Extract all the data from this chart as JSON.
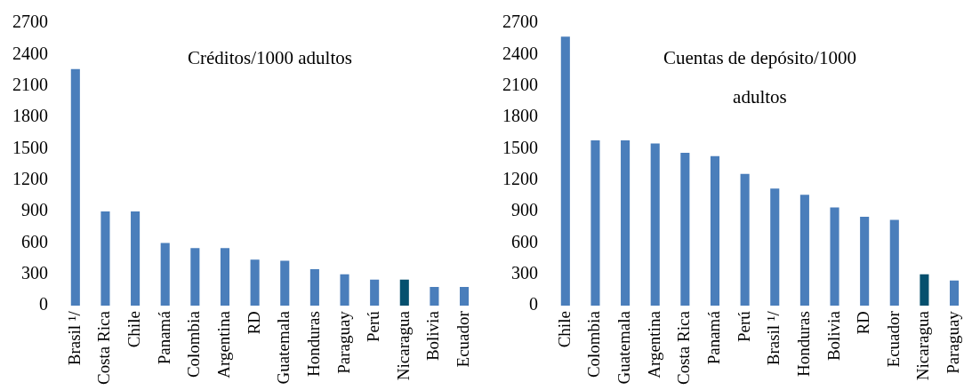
{
  "chart_data": [
    {
      "type": "bar",
      "title": "Créditos/1000 adultos",
      "categories": [
        "Brasil ¹/",
        "Costa Rica",
        "Chile",
        "Panamá",
        "Colombia",
        "Argentina",
        "RD",
        "Guatemala",
        "Honduras",
        "Paraguay",
        "Perú",
        "Nicaragua",
        "Bolivia",
        "Ecuador"
      ],
      "values": [
        2260,
        900,
        900,
        600,
        550,
        550,
        440,
        430,
        350,
        300,
        250,
        250,
        180,
        180
      ],
      "colors": [
        "#4a7ebb",
        "#4a7ebb",
        "#4a7ebb",
        "#4a7ebb",
        "#4a7ebb",
        "#4a7ebb",
        "#4a7ebb",
        "#4a7ebb",
        "#4a7ebb",
        "#4a7ebb",
        "#4a7ebb",
        "#05506e",
        "#4a7ebb",
        "#4a7ebb"
      ],
      "ylim": [
        0,
        2700
      ],
      "yticks": [
        0,
        300,
        600,
        900,
        1200,
        1500,
        1800,
        2100,
        2400,
        2700
      ],
      "grid": false,
      "legend": false
    },
    {
      "type": "bar",
      "title": "Cuentas de depósito/1000 adultos",
      "categories": [
        "Chile",
        "Colombia",
        "Guatemala",
        "Argentina",
        "Costa Rica",
        "Panamá",
        "Perú",
        "Brasil ¹/",
        "Honduras",
        "Bolivia",
        "RD",
        "Ecuador",
        "Nicaragua",
        "Paraguay"
      ],
      "values": [
        2570,
        1580,
        1580,
        1550,
        1460,
        1430,
        1260,
        1120,
        1060,
        940,
        850,
        820,
        300,
        240
      ],
      "colors": [
        "#4a7ebb",
        "#4a7ebb",
        "#4a7ebb",
        "#4a7ebb",
        "#4a7ebb",
        "#4a7ebb",
        "#4a7ebb",
        "#4a7ebb",
        "#4a7ebb",
        "#4a7ebb",
        "#4a7ebb",
        "#4a7ebb",
        "#05506e",
        "#4a7ebb"
      ],
      "ylim": [
        0,
        2700
      ],
      "yticks": [
        0,
        300,
        600,
        900,
        1200,
        1500,
        1800,
        2100,
        2400,
        2700
      ],
      "grid": false,
      "legend": false
    }
  ]
}
